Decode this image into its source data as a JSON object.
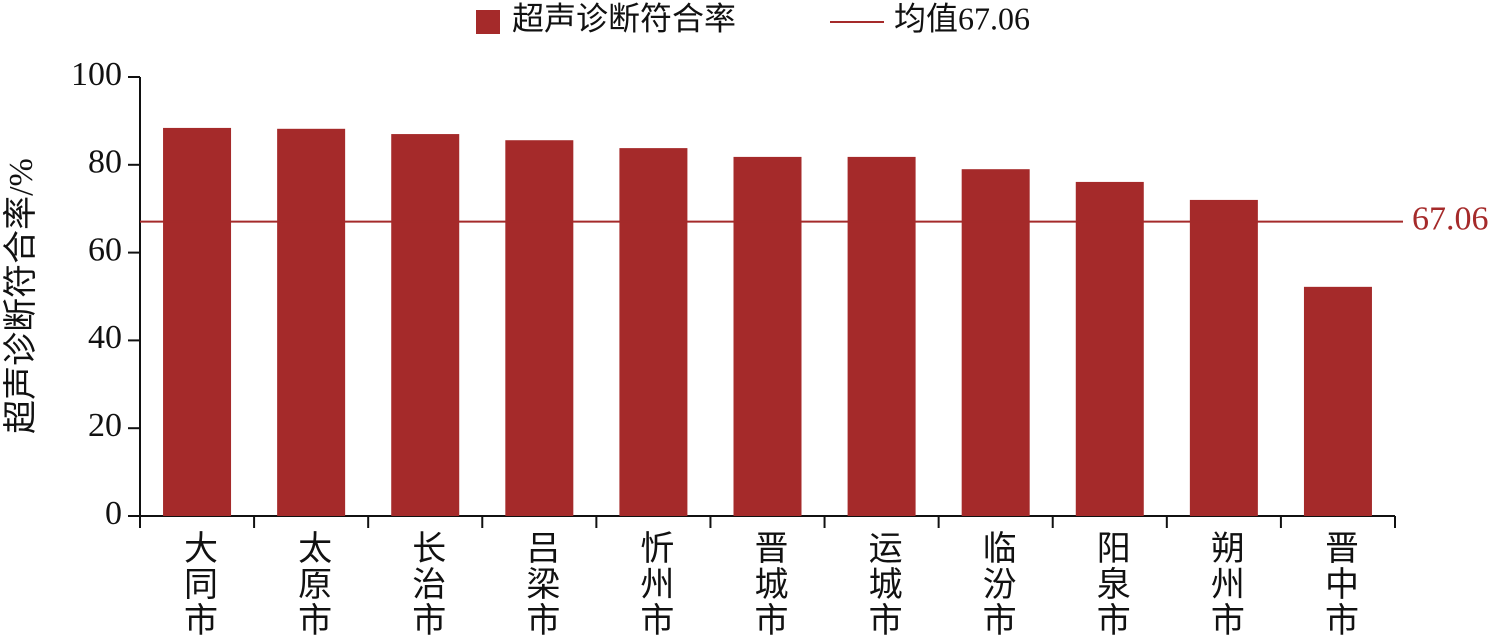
{
  "chart_data": {
    "type": "bar",
    "y_label": "超声诊断符合率/%",
    "categories": [
      "大同市",
      "太原市",
      "长治市",
      "吕梁市",
      "忻州市",
      "晋城市",
      "运城市",
      "临汾市",
      "阳泉市",
      "朔州市",
      "晋中市"
    ],
    "series": [
      {
        "name": "超声诊断符合率",
        "color": "#a52a2a",
        "values": [
          88.4,
          88.2,
          87.0,
          85.6,
          83.8,
          81.8,
          81.8,
          79.0,
          76.1,
          72.0,
          52.2
        ]
      }
    ],
    "reference_line": {
      "name": "均值67.06",
      "value": 67.06,
      "color": "#a52a2a"
    },
    "ylim": [
      0,
      100
    ],
    "yticks": [
      0,
      20,
      40,
      60,
      80,
      100
    ],
    "grid": false
  }
}
